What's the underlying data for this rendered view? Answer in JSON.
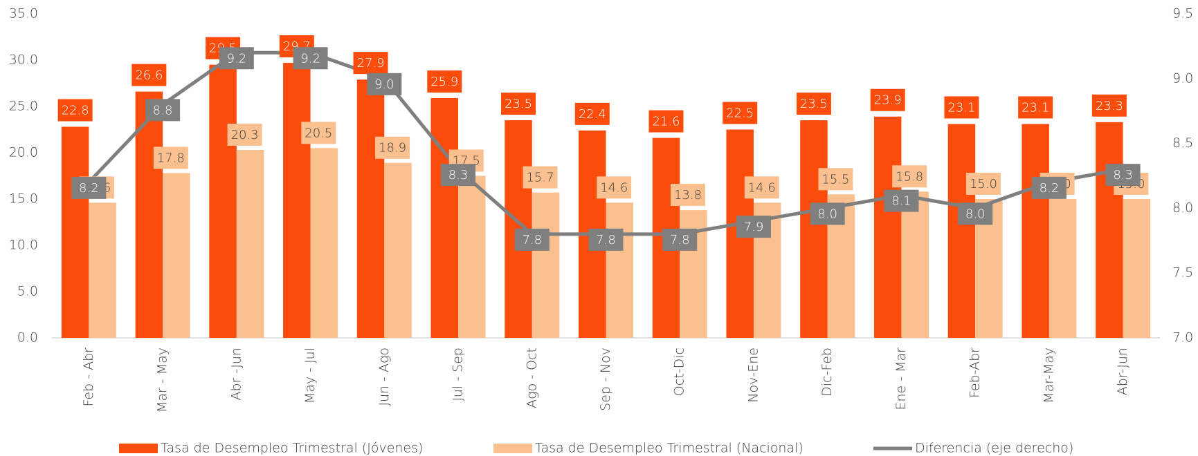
{
  "chart_data": {
    "type": "bar",
    "categories": [
      "Feb - Abr",
      "Mar - May",
      "Abr -Jun",
      "May - Jul",
      "Jun - Ago",
      "Jul - Sep",
      "Ago - Oct",
      "Sep - Nov",
      "Oct-Dic",
      "Nov-Ene",
      "Dic-Feb",
      "Ene - Mar",
      "Feb-Abr",
      "Mar-May",
      "Abr-Jun"
    ],
    "series": [
      {
        "name": "Tasa de Desempleo Trimestral (Jóvenes)",
        "color": "#fc4c0c",
        "values": [
          22.8,
          26.6,
          29.5,
          29.7,
          27.9,
          25.9,
          23.5,
          22.4,
          21.6,
          22.5,
          23.5,
          23.9,
          23.1,
          23.1,
          23.3
        ],
        "value_labels": [
          "22.8",
          "26.6",
          "29.5",
          "29.7",
          "27.9",
          "25.9",
          "23.5",
          "22.4",
          "21.6",
          "22.5",
          "23.5",
          "23.9",
          "23.1",
          "23.1",
          "23.3"
        ]
      },
      {
        "name": "Tasa de Desempleo Trimestral (Nacional)",
        "color": "#fbc08f",
        "values": [
          14.6,
          17.8,
          20.3,
          20.5,
          18.9,
          17.5,
          15.7,
          14.6,
          13.8,
          14.6,
          15.5,
          15.8,
          15.0,
          15.0,
          15.0
        ],
        "value_labels": [
          "14.6",
          "17.8",
          "20.3",
          "20.5",
          "18.9",
          "17.5",
          "15.7",
          "14.6",
          "13.8",
          "14.6",
          "15.5",
          "15.8",
          "15.0",
          "15.0",
          "15.0"
        ]
      },
      {
        "name": "Diferencia (eje derecho)",
        "color": "#7f7f7f",
        "type": "line",
        "axis": "y2",
        "values": [
          8.2,
          8.8,
          9.2,
          9.2,
          9.0,
          8.3,
          7.8,
          7.8,
          7.8,
          7.9,
          8.0,
          8.1,
          8.0,
          8.2,
          8.3
        ],
        "value_labels": [
          "8.2",
          "8.8",
          "9.2",
          "9.2",
          "9.0",
          "8.3",
          "7.8",
          "7.8",
          "7.8",
          "7.9",
          "8.0",
          "8.1",
          "8.0",
          "8.2",
          "8.3"
        ]
      }
    ],
    "ylim": [
      0,
      35
    ],
    "yticks": [
      {
        "value": 0,
        "label": "0.0"
      },
      {
        "value": 5,
        "label": "5.0"
      },
      {
        "value": 10,
        "label": "10.0"
      },
      {
        "value": 15,
        "label": "15.0"
      },
      {
        "value": 20,
        "label": "20.0"
      },
      {
        "value": 25,
        "label": "25.0"
      },
      {
        "value": 30,
        "label": "30.0"
      },
      {
        "value": 35,
        "label": "35.0"
      }
    ],
    "y2lim": [
      7,
      9.5
    ],
    "y2ticks": [
      {
        "value": 7,
        "label": "7.0"
      },
      7.5,
      {
        "value": 8,
        "label": "8.0"
      },
      8.5,
      {
        "value": 9,
        "label": "9.0"
      },
      9.5
    ],
    "legend": "bottom"
  }
}
